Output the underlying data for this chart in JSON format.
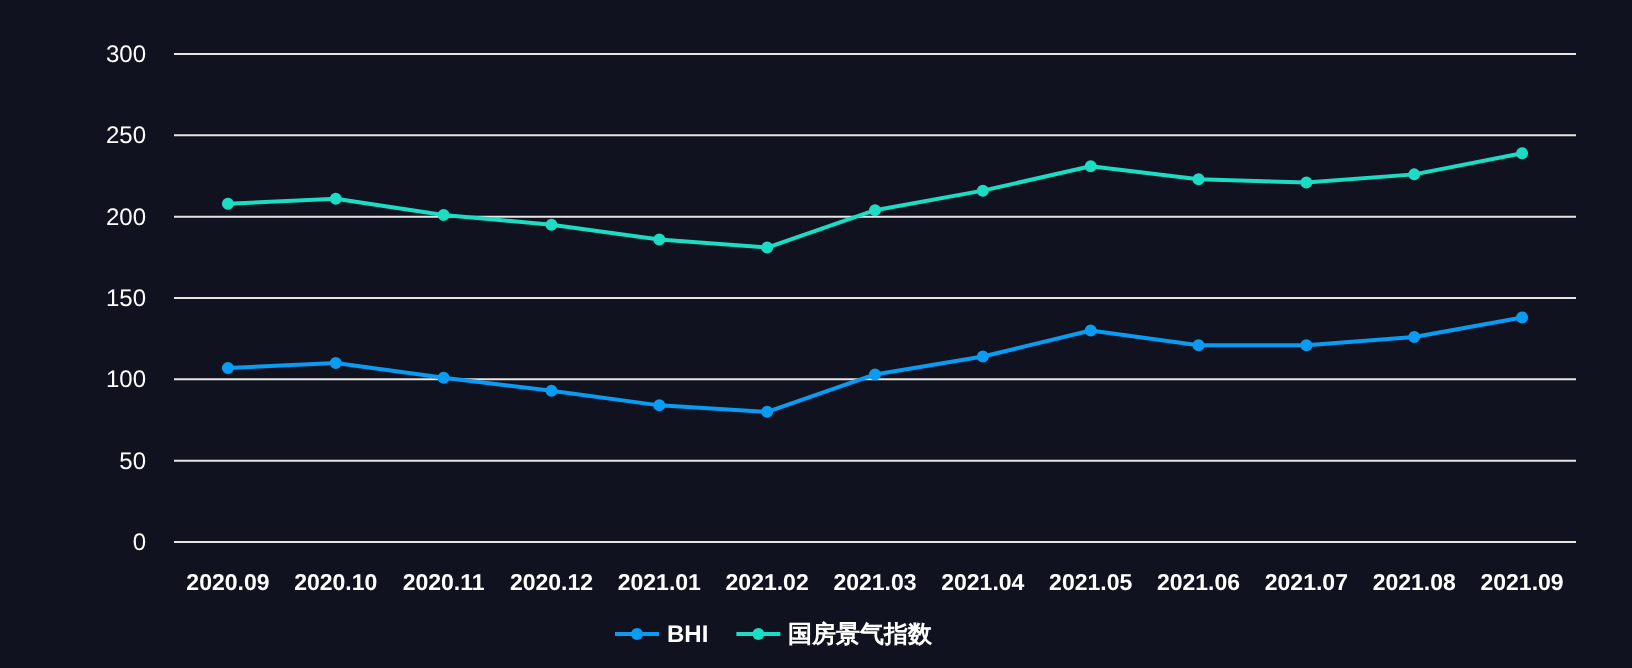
{
  "chart_data": {
    "type": "line",
    "categories": [
      "2020.09",
      "2020.10",
      "2020.11",
      "2020.12",
      "2021.01",
      "2021.02",
      "2021.03",
      "2021.04",
      "2021.05",
      "2021.06",
      "2021.07",
      "2021.08",
      "2021.09"
    ],
    "series": [
      {
        "name": "BHI",
        "color": "#0a9cf2",
        "values": [
          107,
          110,
          101,
          93,
          84,
          80,
          103,
          114,
          130,
          121,
          121,
          126,
          138
        ]
      },
      {
        "name": "国房景气指数",
        "color": "#1cdcc4",
        "values": [
          208,
          211,
          201,
          195,
          186,
          181,
          204,
          216,
          231,
          223,
          221,
          226,
          239
        ]
      }
    ],
    "ylim": [
      0,
      300
    ],
    "yticks": [
      0,
      50,
      100,
      150,
      200,
      250,
      300
    ],
    "grid": "y",
    "legend": "bottom",
    "marker": "circle",
    "line_style": "solid"
  }
}
